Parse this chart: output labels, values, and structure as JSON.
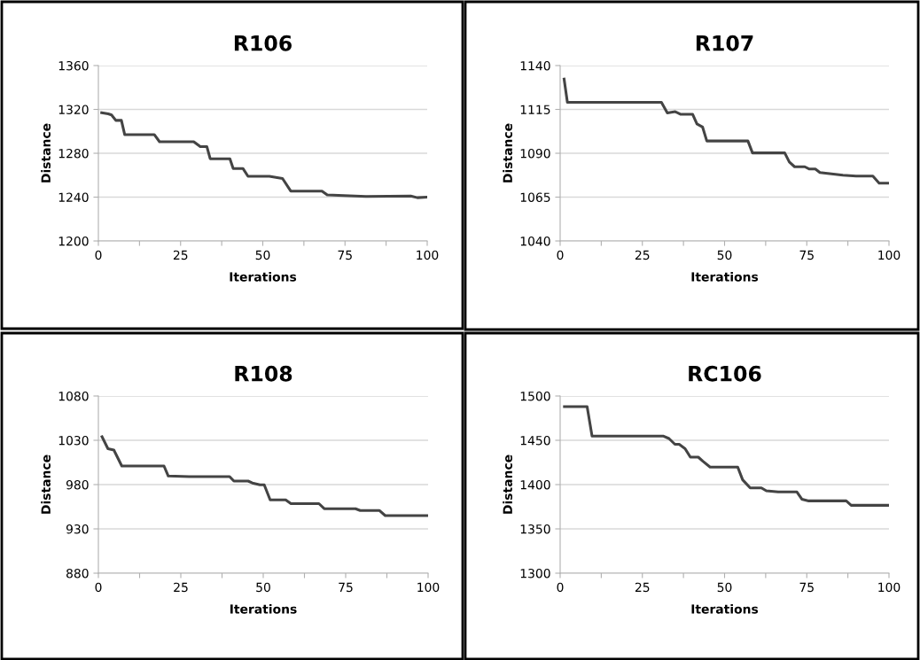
{
  "chart_data": [
    {
      "type": "line",
      "title": "R106",
      "xlabel": "Iterations",
      "ylabel": "Distance",
      "grid": "y",
      "xlim": [
        0,
        100
      ],
      "ylim": [
        1200,
        1360
      ],
      "xticks": [
        0,
        {
          "value": 12.5,
          "label": null
        },
        25,
        {
          "value": 37.5,
          "label": null
        },
        50,
        {
          "value": 62.5,
          "label": null
        },
        75,
        {
          "value": 87.5,
          "label": null
        },
        100
      ],
      "yticks": [
        1200,
        1240,
        1280,
        1320,
        1360
      ],
      "series": [
        {
          "color": "#444444",
          "x": [
            1,
            3,
            4,
            5.3,
            7,
            8,
            17,
            18.6,
            29,
            31,
            33,
            34,
            40,
            41,
            44,
            45.5,
            52,
            56,
            58.5,
            68,
            69.6,
            81.4,
            95,
            97,
            100
          ],
          "values": [
            1317,
            1316,
            1315,
            1310,
            1310,
            1297,
            1297,
            1290.5,
            1290.5,
            1286,
            1286,
            1275,
            1275,
            1266,
            1266,
            1259,
            1259,
            1257,
            1245.5,
            1245.5,
            1242,
            1240.6,
            1241,
            1239.5,
            1240
          ]
        }
      ]
    },
    {
      "type": "line",
      "title": "R107",
      "xlabel": "Iterations",
      "ylabel": "Distance",
      "grid": "y",
      "xlim": [
        0,
        100
      ],
      "ylim": [
        1040,
        1140
      ],
      "xticks": [
        0,
        {
          "value": 12.5,
          "label": null
        },
        25,
        {
          "value": 37.5,
          "label": null
        },
        50,
        {
          "value": 62.5,
          "label": null
        },
        75,
        {
          "value": 87.5,
          "label": null
        },
        100
      ],
      "yticks": [
        1040,
        1065,
        1090,
        1115,
        1140
      ],
      "series": [
        {
          "color": "#444444",
          "x": [
            1.2,
            2.2,
            30.8,
            32.6,
            35,
            36.7,
            40.3,
            41.6,
            43.3,
            44.6,
            57.1,
            58.5,
            68.3,
            69.7,
            71.3,
            74.4,
            75.8,
            77.6,
            79,
            86,
            90,
            95.1,
            97,
            100
          ],
          "values": [
            1132.3,
            1119,
            1119,
            1113,
            1113.7,
            1112.2,
            1112.2,
            1106.7,
            1105,
            1097,
            1097,
            1090.2,
            1090.2,
            1085,
            1082.3,
            1082.3,
            1081,
            1081,
            1079,
            1077.5,
            1077,
            1077,
            1073,
            1073
          ]
        }
      ]
    },
    {
      "type": "line",
      "title": "R108",
      "xlabel": "Iterations",
      "ylabel": "Distance",
      "grid": "y",
      "xlim": [
        0,
        100
      ],
      "ylim": [
        880,
        1080
      ],
      "xticks": [
        0,
        {
          "value": 12.5,
          "label": null
        },
        25,
        {
          "value": 37.5,
          "label": null
        },
        50,
        {
          "value": 62.5,
          "label": null
        },
        75,
        {
          "value": 87.5,
          "label": null
        },
        100
      ],
      "yticks": [
        880,
        930,
        980,
        1030,
        1080
      ],
      "series": [
        {
          "color": "#444444",
          "x": [
            1.1,
            2.9,
            4.7,
            7.1,
            19.9,
            21.2,
            27.5,
            39.8,
            41.1,
            45.4,
            46.7,
            49,
            50.3,
            52.1,
            56.8,
            58.4,
            66.9,
            68.5,
            78,
            79.4,
            85.2,
            87,
            100
          ],
          "values": [
            1034,
            1020.5,
            1019,
            1001,
            1001,
            989.7,
            989,
            989,
            984,
            984,
            981.8,
            979.8,
            979.8,
            962.8,
            962.8,
            958.5,
            958.5,
            952.8,
            952.8,
            950.8,
            950.8,
            945,
            945
          ]
        }
      ]
    },
    {
      "type": "line",
      "title": "RC106",
      "xlabel": "Iterations",
      "ylabel": "Distance",
      "grid": "y",
      "xlim": [
        0,
        100
      ],
      "ylim": [
        1300,
        1500
      ],
      "xticks": [
        0,
        {
          "value": 12.5,
          "label": null
        },
        25,
        {
          "value": 37.5,
          "label": null
        },
        50,
        {
          "value": 62.5,
          "label": null
        },
        75,
        {
          "value": 87.5,
          "label": null
        },
        100
      ],
      "yticks": [
        1300,
        1350,
        1400,
        1450,
        1500
      ],
      "series": [
        {
          "color": "#444444",
          "x": [
            1.3,
            8.2,
            9.7,
            31.3,
            33.1,
            34.9,
            36.2,
            38,
            39.6,
            42,
            43.4,
            45.6,
            54,
            55.5,
            57.8,
            61.2,
            62.7,
            66.3,
            72,
            73.5,
            75.6,
            87,
            88.5,
            100
          ],
          "values": [
            1488,
            1488,
            1454.8,
            1454.8,
            1452,
            1445.5,
            1445.5,
            1440.5,
            1431,
            1431,
            1426.4,
            1419.7,
            1419.7,
            1405.4,
            1396.3,
            1396.3,
            1393,
            1391.7,
            1391.7,
            1383.6,
            1381.6,
            1381.6,
            1376.6,
            1376.6
          ]
        }
      ]
    }
  ]
}
